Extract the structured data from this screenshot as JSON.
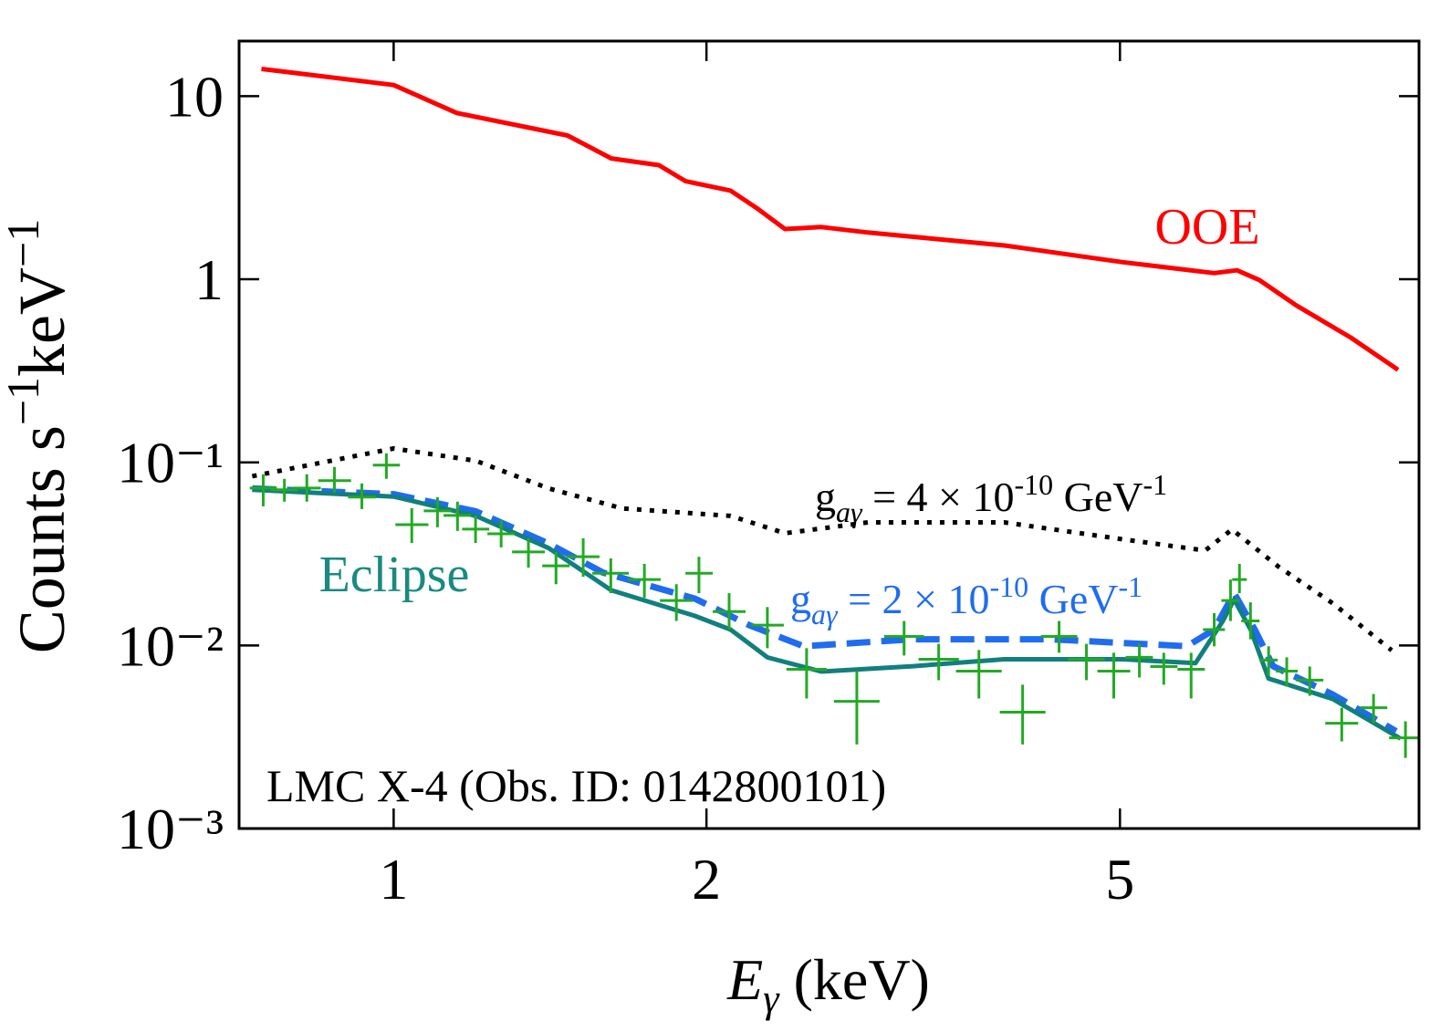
{
  "chart_data": {
    "type": "line",
    "log_x": true,
    "log_y": true,
    "xlim": [
      0.71,
      9.7
    ],
    "ylim": [
      0.001,
      20
    ],
    "xticks": [
      1,
      2,
      5
    ],
    "yticks": [
      10,
      1,
      {
        "value": 0.1,
        "label": "10⁻¹"
      },
      {
        "value": 0.01,
        "label": "10⁻²"
      },
      {
        "value": 0.001,
        "label": "10⁻³"
      }
    ],
    "x_label_parts": [
      "E",
      "γ",
      " (keV)"
    ],
    "y_label_parts": [
      "Counts s",
      "−1",
      "keV",
      "−1"
    ],
    "source_label": "LMC X-4 (Obs. ID: 0142800101)",
    "coupling_labels": [
      [
        "g",
        "aγ",
        " = 4 × 10",
        "-10",
        " GeV",
        "-1"
      ],
      [
        "g",
        "aγ",
        " = 2 × 10",
        "-10",
        " GeV",
        "-1"
      ]
    ],
    "series": [
      {
        "name": "OOE",
        "color": "#ff0000",
        "style": "solid",
        "x": [
          0.746,
          1.0,
          1.15,
          1.47,
          1.62,
          1.8,
          1.91,
          2.11,
          2.24,
          2.38,
          2.58,
          2.86,
          3.87,
          5.03,
          6.16,
          6.48,
          6.81,
          7.39,
          8.34,
          9.26
        ],
        "values": [
          14.1,
          11.5,
          8.1,
          6.1,
          4.57,
          4.2,
          3.43,
          3.05,
          2.43,
          1.88,
          1.93,
          1.8,
          1.53,
          1.24,
          1.08,
          1.12,
          0.99,
          0.72,
          0.48,
          0.32
        ]
      },
      {
        "color": "#000000",
        "style": "dotted",
        "x": [
          0.731,
          1.0,
          1.2,
          1.41,
          1.66,
          2.11,
          2.38,
          2.86,
          3.87,
          5.03,
          6.04,
          6.41,
          7.1,
          8.01,
          9.13
        ],
        "values": [
          0.084,
          0.119,
          0.102,
          0.072,
          0.056,
          0.051,
          0.041,
          0.047,
          0.047,
          0.038,
          0.033,
          0.043,
          0.027,
          0.017,
          0.0094
        ]
      },
      {
        "color": "#1f6cf0",
        "style": "dashed",
        "x": [
          0.731,
          1.0,
          1.2,
          1.41,
          1.59,
          1.95,
          2.2,
          2.48,
          3.16,
          4.28,
          5.8,
          6.16,
          6.44,
          6.74,
          7.02,
          8.01,
          9.22
        ],
        "values": [
          0.072,
          0.067,
          0.054,
          0.036,
          0.025,
          0.018,
          0.0129,
          0.0099,
          0.0108,
          0.0108,
          0.0099,
          0.0122,
          0.0193,
          0.0122,
          0.0077,
          0.0054,
          0.0034
        ]
      },
      {
        "name": "Eclipse",
        "color": "#127f7f",
        "style": "solid",
        "x": [
          0.731,
          1.0,
          1.2,
          1.41,
          1.62,
          1.95,
          2.11,
          2.29,
          2.58,
          3.16,
          3.87,
          5.03,
          5.91,
          6.28,
          6.44,
          6.68,
          6.95,
          8.01,
          9.31
        ],
        "values": [
          0.0708,
          0.065,
          0.051,
          0.034,
          0.02,
          0.0145,
          0.0122,
          0.0086,
          0.0072,
          0.0077,
          0.0084,
          0.0084,
          0.008,
          0.0136,
          0.0178,
          0.0122,
          0.0066,
          0.0051,
          0.0031
        ]
      },
      {
        "color": "#22aa22",
        "style": "errorbar",
        "x": [
          0.749,
          0.785,
          0.825,
          0.877,
          0.932,
          0.984,
          1.041,
          1.102,
          1.152,
          1.199,
          1.269,
          1.348,
          1.433,
          1.522,
          1.618,
          1.743,
          1.871,
          1.967,
          2.103,
          2.289,
          2.497,
          2.791,
          3.099,
          3.346,
          3.658,
          4.03,
          4.369,
          4.642,
          4.932,
          5.22,
          5.51,
          5.854,
          6.161,
          6.388,
          6.516,
          6.677,
          6.951,
          7.236,
          7.614,
          8.174,
          8.77,
          9.413
        ],
        "x_low": [
          0.727,
          0.761,
          0.801,
          0.846,
          0.904,
          0.955,
          1.004,
          1.069,
          1.117,
          1.164,
          1.231,
          1.3,
          1.39,
          1.468,
          1.553,
          1.68,
          1.804,
          1.909,
          2.028,
          2.208,
          2.388,
          2.653,
          2.965,
          3.2,
          3.477,
          3.831,
          4.196,
          4.458,
          4.756,
          5.063,
          5.347,
          5.68,
          6.01,
          6.26,
          6.412,
          6.543,
          6.812,
          7.064,
          7.385,
          7.88,
          8.509,
          9.078
        ],
        "x_high": [
          0.772,
          0.809,
          0.851,
          0.91,
          0.961,
          1.014,
          1.08,
          1.136,
          1.187,
          1.236,
          1.308,
          1.398,
          1.477,
          1.578,
          1.684,
          1.807,
          1.94,
          2.028,
          2.181,
          2.374,
          2.611,
          2.935,
          3.239,
          3.499,
          3.847,
          4.239,
          4.549,
          4.833,
          5.115,
          5.379,
          5.68,
          6.035,
          6.31,
          6.516,
          6.623,
          6.812,
          7.093,
          7.415,
          7.848,
          8.476,
          9.04,
          9.761
        ],
        "values": [
          0.0724,
          0.0708,
          0.0724,
          0.0794,
          0.0646,
          0.0966,
          0.0457,
          0.0543,
          0.0513,
          0.0432,
          0.0407,
          0.0324,
          0.0272,
          0.0305,
          0.0248,
          0.0229,
          0.0176,
          0.0248,
          0.0153,
          0.0129,
          0.00741,
          0.00495,
          0.0112,
          0.00841,
          0.00724,
          0.00432,
          0.0112,
          0.00841,
          0.00724,
          0.00861,
          0.00767,
          0.00741,
          0.0122,
          0.0176,
          0.0229,
          0.0136,
          0.00832,
          0.00724,
          0.00646,
          0.00376,
          0.00457,
          0.00313
        ],
        "y_low": [
          0.0575,
          0.061,
          0.061,
          0.0684,
          0.0556,
          0.0813,
          0.0363,
          0.0442,
          0.0422,
          0.0363,
          0.0343,
          0.0266,
          0.0216,
          0.0237,
          0.0193,
          0.0182,
          0.0136,
          0.0193,
          0.0122,
          0.00966,
          0.00513,
          0.00288,
          0.00881,
          0.00646,
          0.00513,
          0.00288,
          0.00912,
          0.00646,
          0.00513,
          0.00668,
          0.0061,
          0.00513,
          0.00989,
          0.0136,
          0.0193,
          0.0108,
          0.00684,
          0.00596,
          0.00531,
          0.00299,
          0.00376,
          0.00243
        ],
        "y_high": [
          0.0861,
          0.0813,
          0.0861,
          0.0944,
          0.0767,
          0.112,
          0.0562,
          0.0646,
          0.061,
          0.0513,
          0.0484,
          0.0385,
          0.0324,
          0.0385,
          0.0299,
          0.0279,
          0.0216,
          0.0305,
          0.0193,
          0.0162,
          0.00966,
          0.00724,
          0.0136,
          0.0102,
          0.00944,
          0.0061,
          0.0136,
          0.0102,
          0.00912,
          0.0102,
          0.00912,
          0.00912,
          0.015,
          0.0229,
          0.0279,
          0.0172,
          0.00989,
          0.00861,
          0.00767,
          0.00457,
          0.00543,
          0.00385
        ]
      }
    ]
  }
}
